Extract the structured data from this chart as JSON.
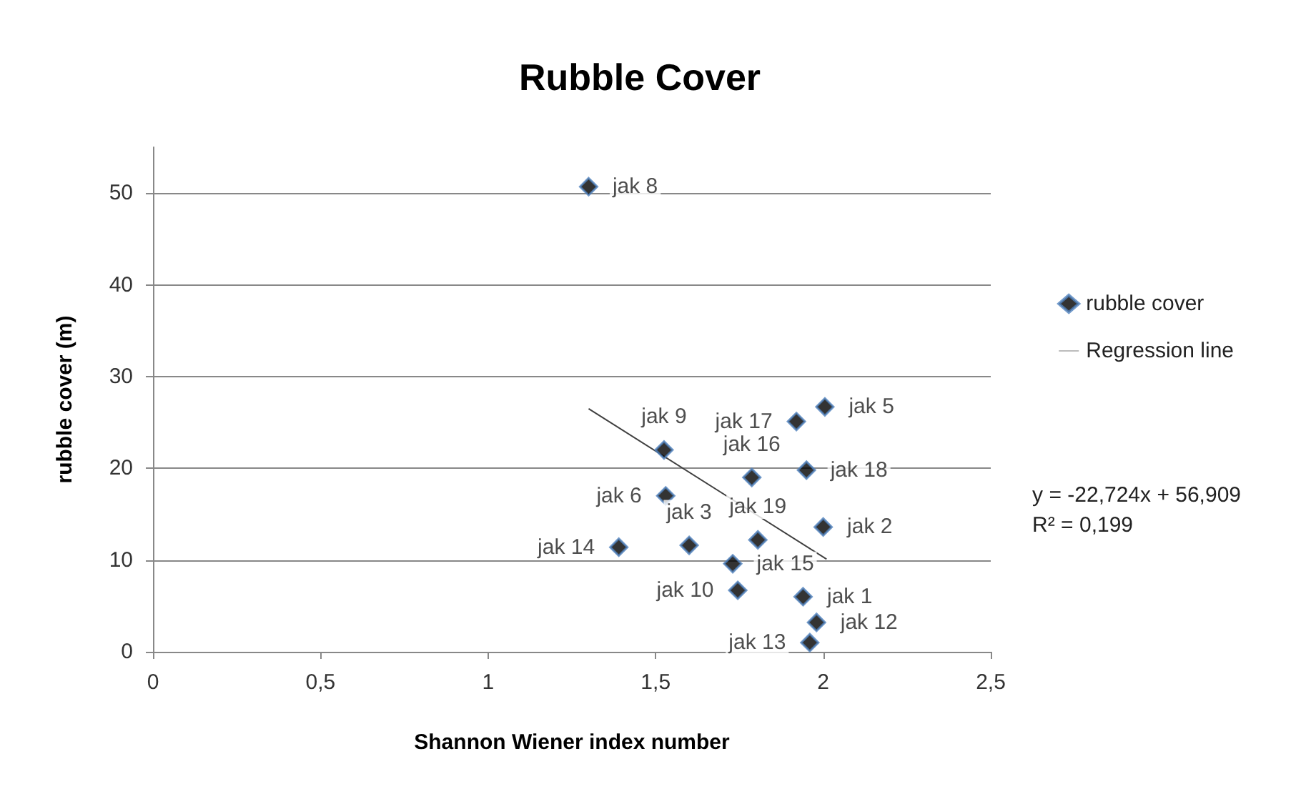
{
  "chart_data": {
    "type": "scatter",
    "title": "Rubble Cover",
    "xlabel": "Shannon Wiener index number",
    "ylabel": "rubble cover (m)",
    "xlim": [
      0,
      2.5
    ],
    "xticks": [
      0,
      {
        "value": 0.5,
        "label": "0,5"
      },
      1,
      {
        "value": 1.5,
        "label": "1,5"
      },
      2,
      {
        "value": 2.5,
        "label": "2,5"
      }
    ],
    "ylim": [
      0,
      55
    ],
    "yticks": [
      0,
      10,
      20,
      30,
      40,
      50
    ],
    "grid": "y",
    "legend": "right",
    "marker": "diamond",
    "series": [
      {
        "name": "rubble cover",
        "color": "#000000",
        "x": [
          1.94,
          2.0,
          1.6,
          2.005,
          1.53,
          1.3,
          1.525,
          1.745,
          1.98,
          1.96,
          1.39,
          1.73,
          1.787,
          1.92,
          1.95,
          1.805
        ],
        "values": [
          6.0,
          13.6,
          11.6,
          26.7,
          17.0,
          50.7,
          22.0,
          6.7,
          3.2,
          1.0,
          11.4,
          9.6,
          19.0,
          25.1,
          19.8,
          12.2
        ],
        "value_labels": [
          "jak 1",
          "jak 2",
          "jak 3",
          "jak 5",
          "jak 6",
          "jak 8",
          "jak 9",
          "jak 10",
          "jak 12",
          "jak 13",
          "jak 14",
          "jak 15",
          "jak 16",
          "jak 17",
          "jak 18",
          "jak 19"
        ]
      },
      {
        "name": "Regression line",
        "type": "line",
        "marker": "none",
        "color": "#404040",
        "x": [
          1.3,
          2.01
        ],
        "values": [
          26.5,
          10.1
        ]
      }
    ],
    "annotations": [
      "y = -22,724x + 56,909\nR² = 0,199"
    ]
  }
}
